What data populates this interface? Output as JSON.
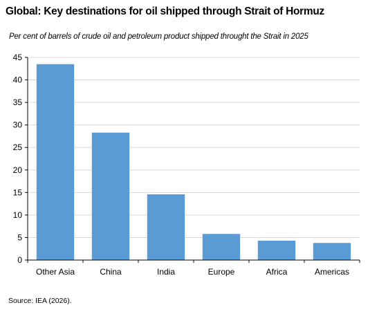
{
  "header": {
    "title": "Global: Key destinations for oil shipped through Strait of Hormuz",
    "subtitle": "Per cent of barrels  of crude oil and petroleum  product shipped throught the Strait in 2025"
  },
  "footer": {
    "source": "Source: IEA (2026)."
  },
  "colors": {
    "bar": "#5b9bd5",
    "gridline": "#d9d9d9",
    "axis": "#000000"
  },
  "chart_data": {
    "type": "bar",
    "title": "Global: Key destinations for oil shipped through Strait of Hormuz",
    "subtitle": "Per cent of barrels  of crude oil and petroleum  product shipped throught the Strait in 2025",
    "xlabel": "",
    "ylabel": "",
    "categories": [
      "Other Asia",
      "China",
      "India",
      "Europe",
      "Africa",
      "Americas"
    ],
    "values": [
      43.5,
      28.3,
      14.6,
      5.8,
      4.3,
      3.8
    ],
    "ylim": [
      0,
      45
    ],
    "yticks": [
      0,
      5,
      10,
      15,
      20,
      25,
      30,
      35,
      40,
      45
    ],
    "grid": true,
    "legend": "none"
  }
}
